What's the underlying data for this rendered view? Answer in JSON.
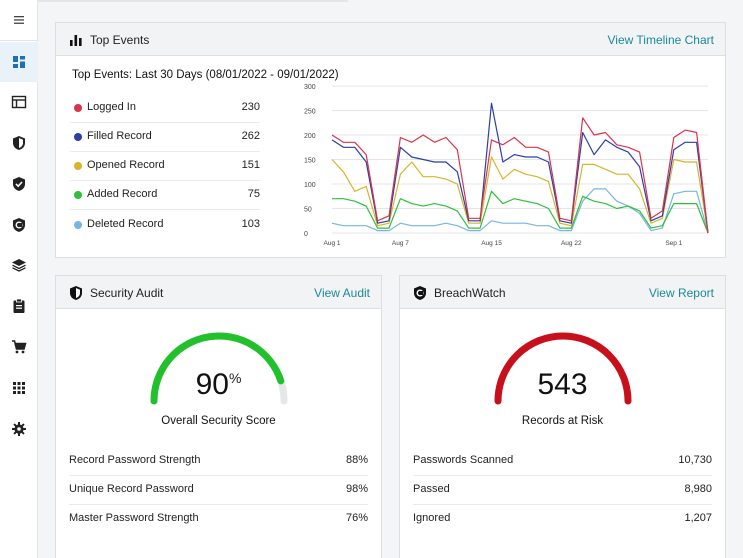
{
  "sidebar": {
    "items": [
      {
        "name": "menu-icon"
      },
      {
        "name": "dashboard-icon",
        "active": true
      },
      {
        "name": "vault-icon"
      },
      {
        "name": "shield-icon"
      },
      {
        "name": "shield-check-icon"
      },
      {
        "name": "breachwatch-icon"
      },
      {
        "name": "layers-icon"
      },
      {
        "name": "clipboard-icon"
      },
      {
        "name": "cart-icon"
      },
      {
        "name": "apps-grid-icon"
      },
      {
        "name": "gear-icon"
      }
    ]
  },
  "top_events": {
    "title": "Top Events",
    "link": "View Timeline Chart",
    "subtitle": "Top Events: Last 30 Days (08/01/2022 - 09/01/2022)",
    "legend": [
      {
        "label": "Logged In",
        "value": "230",
        "color": "#d9344b"
      },
      {
        "label": "Filled Record",
        "value": "262",
        "color": "#2b3fa6"
      },
      {
        "label": "Opened Record",
        "value": "151",
        "color": "#d6b52b"
      },
      {
        "label": "Added Record",
        "value": "75",
        "color": "#2fbf3a"
      },
      {
        "label": "Deleted Record",
        "value": "103",
        "color": "#76b6e0"
      }
    ]
  },
  "chart_data": {
    "type": "line",
    "x": [
      "Aug 1",
      "",
      "",
      "",
      "",
      "",
      "Aug 7",
      "",
      "",
      "",
      "",
      "",
      "",
      "",
      "Aug 15",
      "",
      "",
      "",
      "",
      "",
      "",
      "Aug 22",
      "",
      "",
      "",
      "",
      "",
      "",
      "",
      "",
      "Sep 1",
      "",
      "",
      ""
    ],
    "x_ticks": [
      "Aug 1",
      "Aug 7",
      "Aug 15",
      "Aug 22",
      "Sep 1"
    ],
    "y_ticks": [
      "0",
      "50",
      "100",
      "150",
      "200",
      "250",
      "300"
    ],
    "ylim": [
      0,
      300
    ],
    "grid": true,
    "series": [
      {
        "name": "Logged In",
        "color": "#d9344b",
        "values": [
          200,
          185,
          185,
          160,
          25,
          35,
          195,
          185,
          200,
          185,
          195,
          170,
          30,
          30,
          190,
          180,
          195,
          175,
          175,
          165,
          30,
          25,
          235,
          200,
          205,
          180,
          175,
          165,
          30,
          45,
          195,
          210,
          205,
          0
        ]
      },
      {
        "name": "Filled Record",
        "color": "#2b3fa6",
        "values": [
          190,
          175,
          175,
          145,
          20,
          25,
          175,
          155,
          150,
          145,
          145,
          125,
          25,
          25,
          265,
          145,
          160,
          155,
          155,
          145,
          25,
          20,
          205,
          160,
          190,
          175,
          165,
          135,
          25,
          35,
          170,
          185,
          185,
          0
        ]
      },
      {
        "name": "Opened Record",
        "color": "#d6b52b",
        "values": [
          150,
          125,
          85,
          95,
          15,
          20,
          120,
          145,
          115,
          115,
          110,
          100,
          20,
          20,
          155,
          110,
          130,
          120,
          115,
          105,
          20,
          15,
          140,
          140,
          130,
          120,
          120,
          90,
          20,
          30,
          150,
          145,
          145,
          0
        ]
      },
      {
        "name": "Added Record",
        "color": "#2fbf3a",
        "values": [
          70,
          70,
          65,
          55,
          10,
          10,
          70,
          60,
          55,
          60,
          55,
          45,
          10,
          10,
          85,
          60,
          70,
          65,
          60,
          50,
          10,
          10,
          75,
          65,
          60,
          50,
          55,
          45,
          10,
          15,
          60,
          60,
          60,
          0
        ]
      },
      {
        "name": "Deleted Record",
        "color": "#76b6e0",
        "values": [
          20,
          15,
          15,
          15,
          5,
          5,
          20,
          15,
          15,
          15,
          20,
          15,
          5,
          5,
          25,
          20,
          20,
          20,
          15,
          15,
          5,
          5,
          65,
          90,
          90,
          65,
          55,
          40,
          5,
          10,
          80,
          85,
          85,
          0
        ]
      }
    ]
  },
  "security_audit": {
    "title": "Security Audit",
    "link": "View Audit",
    "score": "90",
    "score_suffix": "%",
    "score_fraction": 0.9,
    "caption": "Overall Security Score",
    "gauge_color": "#22c02b",
    "rows": [
      {
        "label": "Record Password Strength",
        "value": "88%"
      },
      {
        "label": "Unique Record Password",
        "value": "98%"
      },
      {
        "label": "Master Password Strength",
        "value": "76%"
      }
    ]
  },
  "breachwatch": {
    "title": "BreachWatch",
    "link": "View Report",
    "count": "543",
    "caption": "Records at Risk",
    "gauge_color": "#c8101d",
    "rows": [
      {
        "label": "Passwords Scanned",
        "value": "10,730"
      },
      {
        "label": "Passed",
        "value": "8,980"
      },
      {
        "label": "Ignored",
        "value": "1,207"
      }
    ]
  }
}
